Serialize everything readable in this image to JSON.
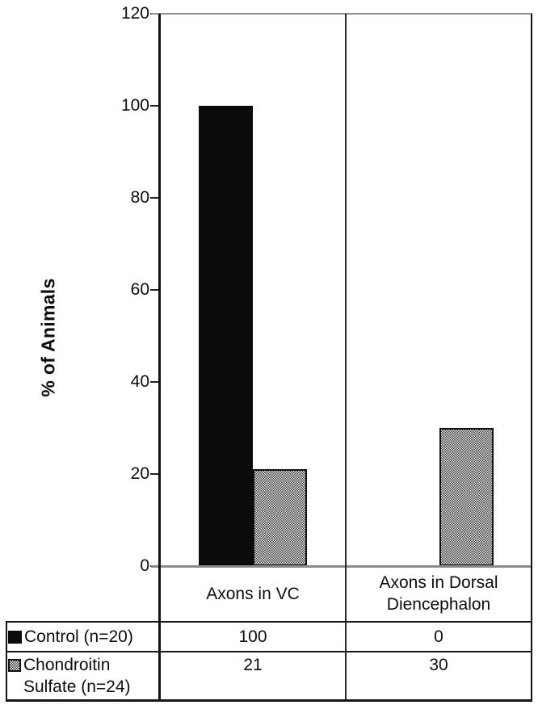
{
  "chart_data": {
    "type": "bar",
    "title": "",
    "ylabel": "% of Animals",
    "xlabel": "",
    "ylim": [
      0,
      120
    ],
    "yticks": [
      0,
      20,
      40,
      60,
      80,
      100,
      120
    ],
    "categories": [
      "Axons in VC",
      "Axons in Dorsal Diencephalon"
    ],
    "series": [
      {
        "name": "Control (n=20)",
        "values": [
          100,
          0
        ],
        "style": "solid-black"
      },
      {
        "name": "Chondroitin Sulfate (n=24)",
        "values": [
          21,
          30
        ],
        "style": "stippled-gray"
      }
    ],
    "grid": false,
    "legend_position": "bottom-data-table"
  },
  "data_table": {
    "rows": [
      {
        "label": "Control (n=20)",
        "swatch": "black-solid",
        "cells": [
          "100",
          "0"
        ]
      },
      {
        "label": "Chondroitin Sulfate (n=24)",
        "swatch": "gray-stipple",
        "cells": [
          "21",
          "30"
        ]
      }
    ]
  },
  "colors": {
    "background": "#ffffff",
    "bar_black": "#0b0b0b",
    "bar_stipple_dark": "#3d3d3d",
    "bar_stipple_light": "#e9e9e9",
    "frame_gray": "#8f8f8f",
    "axis_black": "#141414",
    "text": "#0d0d0d"
  }
}
